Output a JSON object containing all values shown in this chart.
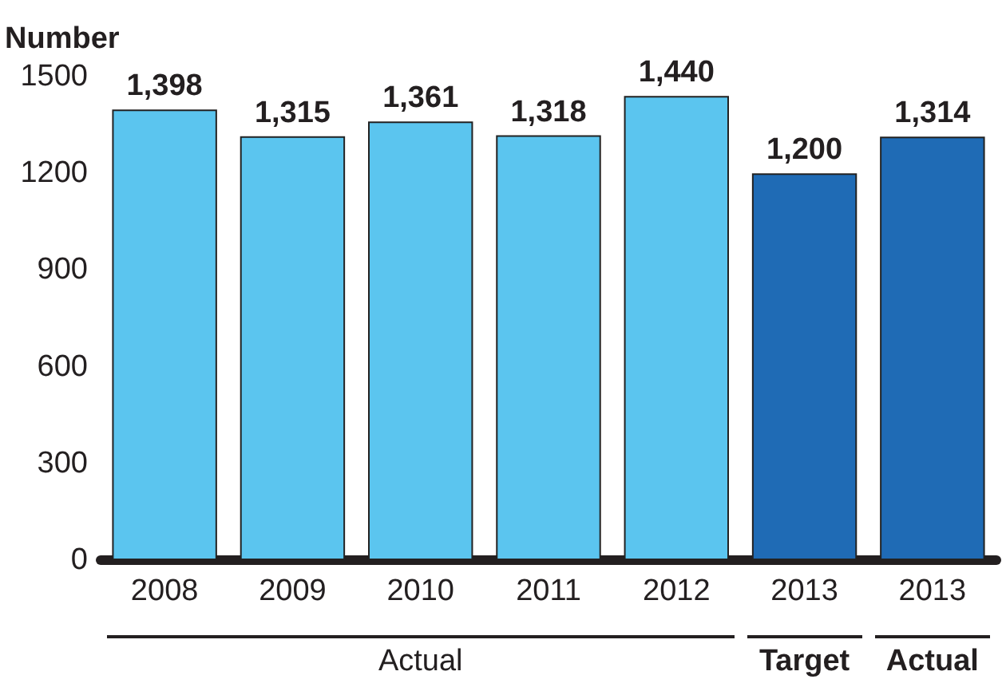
{
  "chart_data": {
    "type": "bar",
    "ylabel": "Number",
    "categories": [
      "2008",
      "2009",
      "2010",
      "2011",
      "2012",
      "2013",
      "2013"
    ],
    "values": [
      1398,
      1315,
      1361,
      1318,
      1440,
      1200,
      1314
    ],
    "colors": [
      "#5bc5ef",
      "#5bc5ef",
      "#5bc5ef",
      "#5bc5ef",
      "#5bc5ef",
      "#1f6bb5",
      "#1f6bb5"
    ],
    "value_labels": [
      "1,398",
      "1,315",
      "1,361",
      "1,318",
      "1,440",
      "1,200",
      "1,314"
    ],
    "ylim": [
      0,
      1500
    ],
    "yticks": [
      0,
      300,
      600,
      900,
      1200,
      1500
    ],
    "grid": false,
    "annotations": [
      "Actual",
      "Target",
      "Actual"
    ]
  }
}
